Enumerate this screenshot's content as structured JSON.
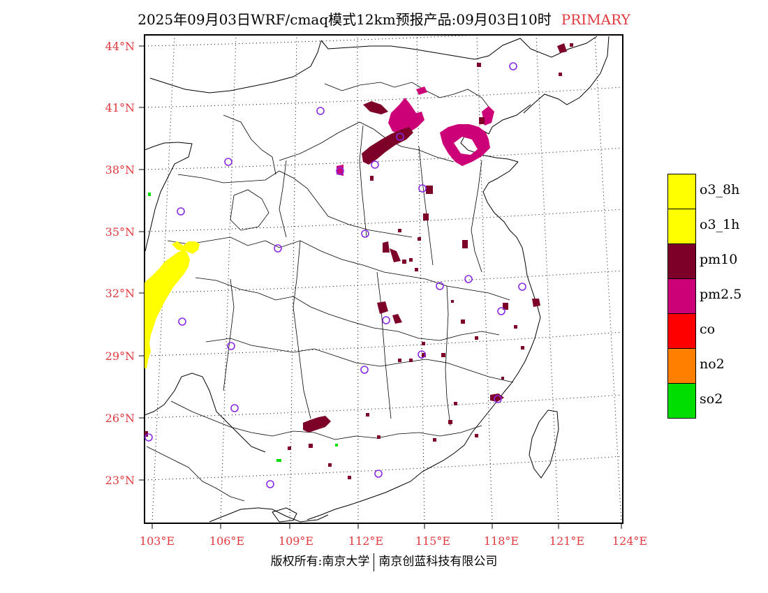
{
  "title": {
    "main": "2025年09月03日WRF/cmaq模式12km预报产品:09月03日10时",
    "tag": "PRIMARY"
  },
  "axes": {
    "lat_labels": [
      "44°N",
      "41°N",
      "38°N",
      "35°N",
      "32°N",
      "29°N",
      "26°N",
      "23°N"
    ],
    "lon_labels": [
      "103°E",
      "106°E",
      "109°E",
      "112°E",
      "115°E",
      "118°E",
      "121°E",
      "124°E"
    ]
  },
  "legend": {
    "items": [
      {
        "label": "o3_8h",
        "color": "#ffff00"
      },
      {
        "label": "o3_1h",
        "color": "#ffff00"
      },
      {
        "label": "pm10",
        "color": "#7d0028"
      },
      {
        "label": "pm2.5",
        "color": "#cc0077"
      },
      {
        "label": "co",
        "color": "#ff0000"
      },
      {
        "label": "no2",
        "color": "#ff7f00"
      },
      {
        "label": "so2",
        "color": "#00dd00"
      }
    ]
  },
  "footer": {
    "left": "版权所有:南京大学",
    "right": "南京创蓝科技有限公司"
  },
  "colors": {
    "axis_label": "#e0393e",
    "station_marker": "#8a2be2",
    "o3": "#ffff00",
    "pm10": "#7d0028",
    "pm25": "#cc0077",
    "so2": "#00dd00"
  }
}
